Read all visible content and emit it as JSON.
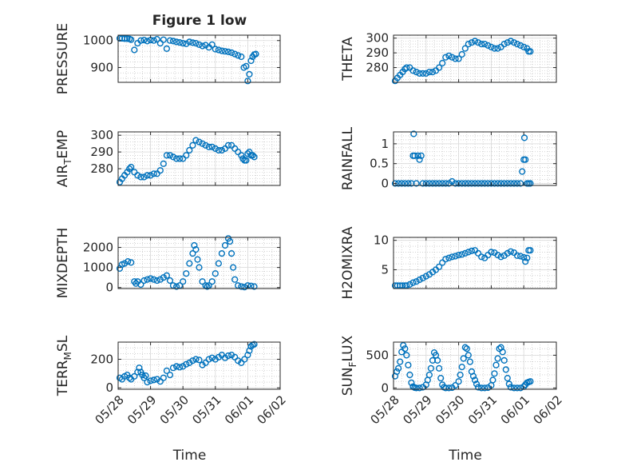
{
  "figure": {
    "title": "Figure 1 low",
    "xlabel": "Time",
    "marker_color": "#0072BD",
    "date_ticks": [
      "05/28",
      "05/29",
      "05/30",
      "05/31",
      "06/01",
      "06/02"
    ]
  },
  "chart_data": [
    {
      "type": "scatter",
      "ylabel": "PRESSURE",
      "xlim": [
        "05/28",
        "06/02"
      ],
      "ylim": [
        845,
        1020
      ],
      "yticks": [
        900,
        1000
      ],
      "grid": true,
      "x": [
        0.05,
        0.12,
        0.2,
        0.28,
        0.35,
        0.4,
        0.5,
        0.6,
        0.7,
        0.8,
        0.9,
        1.0,
        1.1,
        1.2,
        1.3,
        1.4,
        1.5,
        1.6,
        1.7,
        1.8,
        1.9,
        2.0,
        2.1,
        2.2,
        2.3,
        2.4,
        2.5,
        2.6,
        2.7,
        2.8,
        2.9,
        3.0,
        3.1,
        3.2,
        3.3,
        3.4,
        3.5,
        3.6,
        3.7,
        3.8,
        3.88,
        3.95,
        4.0,
        4.05,
        4.1,
        4.15,
        4.2,
        4.25
      ],
      "y": [
        1008,
        1008,
        1007,
        1007,
        1006,
        1003,
        965,
        990,
        1000,
        1002,
        998,
        1002,
        1000,
        1005,
        990,
        1003,
        970,
        1000,
        998,
        995,
        993,
        990,
        988,
        995,
        992,
        990,
        985,
        980,
        983,
        975,
        985,
        968,
        965,
        962,
        960,
        958,
        955,
        950,
        945,
        940,
        900,
        905,
        850,
        875,
        925,
        940,
        948,
        950
      ]
    },
    {
      "type": "scatter",
      "ylabel": "THETA",
      "xlim": [
        "05/28",
        "06/02"
      ],
      "ylim": [
        270,
        302
      ],
      "yticks": [
        280,
        290,
        300
      ],
      "grid": true,
      "x": [
        0.05,
        0.12,
        0.2,
        0.28,
        0.35,
        0.4,
        0.5,
        0.6,
        0.7,
        0.8,
        0.9,
        1.0,
        1.1,
        1.2,
        1.3,
        1.4,
        1.5,
        1.6,
        1.7,
        1.8,
        1.9,
        2.0,
        2.1,
        2.2,
        2.3,
        2.4,
        2.5,
        2.6,
        2.7,
        2.8,
        2.9,
        3.0,
        3.1,
        3.2,
        3.3,
        3.4,
        3.5,
        3.6,
        3.7,
        3.8,
        3.9,
        4.0,
        4.1,
        4.15,
        4.2
      ],
      "y": [
        271,
        273,
        275,
        277,
        279,
        280,
        280,
        278,
        277,
        276,
        276,
        276,
        277,
        277,
        278,
        280,
        283,
        287,
        288,
        287,
        286,
        286,
        289,
        293,
        296,
        297,
        298,
        297,
        296,
        296,
        295,
        294,
        293,
        293,
        294,
        296,
        297,
        298,
        297,
        296,
        295,
        294,
        293,
        291,
        291
      ]
    },
    {
      "type": "scatter",
      "ylabel": "AIR_TEMP",
      "xlim": [
        "05/28",
        "06/02"
      ],
      "ylim": [
        270,
        302
      ],
      "yticks": [
        280,
        290,
        300
      ],
      "grid": true,
      "x": [
        0.05,
        0.12,
        0.2,
        0.28,
        0.35,
        0.4,
        0.5,
        0.6,
        0.7,
        0.8,
        0.9,
        1.0,
        1.1,
        1.2,
        1.3,
        1.4,
        1.5,
        1.6,
        1.7,
        1.8,
        1.9,
        2.0,
        2.1,
        2.2,
        2.3,
        2.4,
        2.5,
        2.6,
        2.7,
        2.8,
        2.9,
        3.0,
        3.1,
        3.2,
        3.3,
        3.4,
        3.5,
        3.6,
        3.7,
        3.8,
        3.85,
        3.9,
        3.95,
        4.0,
        4.05,
        4.1,
        4.15,
        4.2
      ],
      "y": [
        272,
        274,
        276,
        278,
        280,
        281,
        278,
        276,
        275,
        275,
        276,
        276,
        277,
        277,
        279,
        283,
        288,
        288,
        287,
        286,
        286,
        286,
        288,
        291,
        294,
        297,
        296,
        295,
        294,
        293,
        293,
        292,
        291,
        291,
        292,
        294,
        294,
        292,
        290,
        288,
        286,
        285,
        285,
        289,
        290,
        288,
        288,
        287
      ]
    },
    {
      "type": "scatter",
      "ylabel": "RAINFALL",
      "xlim": [
        "05/28",
        "06/02"
      ],
      "ylim": [
        -0.05,
        1.3
      ],
      "yticks": [
        0,
        0.5,
        1
      ],
      "grid": true,
      "x": [
        0.05,
        0.15,
        0.25,
        0.35,
        0.45,
        0.55,
        0.6,
        0.62,
        0.65,
        0.7,
        0.75,
        0.8,
        0.85,
        0.9,
        1.0,
        1.1,
        1.2,
        1.3,
        1.4,
        1.5,
        1.6,
        1.7,
        1.8,
        1.9,
        2.0,
        2.1,
        2.2,
        2.3,
        2.4,
        2.5,
        2.6,
        2.7,
        2.8,
        2.9,
        3.0,
        3.1,
        3.2,
        3.3,
        3.4,
        3.5,
        3.6,
        3.7,
        3.8,
        3.9,
        3.95,
        4.0,
        4.02,
        4.05,
        4.1,
        4.15,
        4.2
      ],
      "y": [
        0,
        0,
        0,
        0,
        0,
        0,
        0.7,
        1.25,
        0.7,
        0,
        0.7,
        0.6,
        0.7,
        0,
        0,
        0,
        0,
        0,
        0,
        0,
        0,
        0,
        0.05,
        0,
        0,
        0,
        0,
        0,
        0,
        0,
        0,
        0,
        0,
        0,
        0,
        0,
        0,
        0,
        0,
        0,
        0,
        0,
        0,
        0,
        0.3,
        0.6,
        1.15,
        0.6,
        0,
        0,
        0
      ]
    },
    {
      "type": "scatter",
      "ylabel": "MIXDEPTH",
      "xlim": [
        "05/28",
        "06/02"
      ],
      "ylim": [
        -50,
        2500
      ],
      "yticks": [
        0,
        1000,
        2000
      ],
      "grid": true,
      "x": [
        0.05,
        0.12,
        0.2,
        0.3,
        0.4,
        0.5,
        0.55,
        0.6,
        0.7,
        0.8,
        0.9,
        1.0,
        1.1,
        1.2,
        1.3,
        1.4,
        1.5,
        1.6,
        1.7,
        1.8,
        1.9,
        2.0,
        2.1,
        2.2,
        2.3,
        2.35,
        2.4,
        2.45,
        2.5,
        2.6,
        2.7,
        2.75,
        2.8,
        2.9,
        3.0,
        3.1,
        3.2,
        3.3,
        3.4,
        3.45,
        3.5,
        3.55,
        3.6,
        3.7,
        3.8,
        3.9,
        4.0,
        4.1,
        4.2
      ],
      "y": [
        950,
        1150,
        1200,
        1300,
        1250,
        300,
        200,
        300,
        150,
        350,
        400,
        450,
        400,
        350,
        400,
        500,
        600,
        350,
        100,
        50,
        100,
        300,
        700,
        1200,
        1700,
        2100,
        1900,
        1400,
        1000,
        300,
        100,
        50,
        100,
        300,
        700,
        1200,
        1700,
        2100,
        2450,
        2300,
        1700,
        1000,
        400,
        100,
        50,
        20,
        100,
        80,
        50
      ]
    },
    {
      "type": "scatter",
      "ylabel": "H2OMIXRA",
      "xlim": [
        "05/28",
        "06/02"
      ],
      "ylim": [
        1.8,
        10.5
      ],
      "yticks": [
        5,
        10
      ],
      "grid": true,
      "x": [
        0.05,
        0.12,
        0.2,
        0.28,
        0.35,
        0.4,
        0.5,
        0.6,
        0.7,
        0.8,
        0.9,
        1.0,
        1.1,
        1.2,
        1.3,
        1.4,
        1.5,
        1.6,
        1.7,
        1.8,
        1.9,
        2.0,
        2.1,
        2.2,
        2.3,
        2.4,
        2.5,
        2.6,
        2.7,
        2.8,
        2.9,
        3.0,
        3.1,
        3.2,
        3.3,
        3.4,
        3.5,
        3.6,
        3.7,
        3.8,
        3.9,
        4.0,
        4.05,
        4.1,
        4.15,
        4.2
      ],
      "y": [
        2.3,
        2.3,
        2.3,
        2.3,
        2.3,
        2.3,
        2.5,
        2.8,
        3.0,
        3.3,
        3.6,
        3.9,
        4.2,
        4.6,
        5.0,
        5.5,
        6.2,
        6.8,
        7.0,
        7.2,
        7.3,
        7.5,
        7.6,
        7.8,
        8.0,
        8.2,
        8.3,
        7.8,
        7.2,
        7.0,
        7.5,
        8.0,
        7.9,
        7.5,
        7.2,
        7.4,
        7.8,
        8.1,
        7.9,
        7.4,
        7.3,
        7.1,
        6.4,
        7.0,
        8.3,
        8.3
      ]
    },
    {
      "type": "scatter",
      "ylabel": "TERR_MSL",
      "xlim": [
        "05/28",
        "06/02"
      ],
      "ylim": [
        -10,
        320
      ],
      "yticks": [
        0,
        200
      ],
      "grid": true,
      "x": [
        0.05,
        0.12,
        0.2,
        0.28,
        0.35,
        0.4,
        0.5,
        0.6,
        0.65,
        0.7,
        0.75,
        0.8,
        0.85,
        0.9,
        1.0,
        1.1,
        1.2,
        1.3,
        1.4,
        1.5,
        1.6,
        1.7,
        1.8,
        1.9,
        2.0,
        2.1,
        2.2,
        2.3,
        2.4,
        2.5,
        2.6,
        2.7,
        2.8,
        2.9,
        3.0,
        3.1,
        3.2,
        3.3,
        3.4,
        3.5,
        3.6,
        3.7,
        3.8,
        3.9,
        4.0,
        4.05,
        4.1,
        4.15,
        4.2
      ],
      "y": [
        70,
        60,
        80,
        90,
        70,
        60,
        80,
        110,
        140,
        110,
        90,
        70,
        85,
        40,
        50,
        55,
        60,
        45,
        70,
        120,
        90,
        140,
        150,
        145,
        150,
        165,
        175,
        190,
        200,
        195,
        160,
        175,
        200,
        210,
        200,
        215,
        230,
        210,
        225,
        230,
        215,
        190,
        175,
        200,
        230,
        260,
        290,
        300,
        305
      ]
    },
    {
      "type": "scatter",
      "ylabel": "SUN_FLUX",
      "xlim": [
        "05/28",
        "06/02"
      ],
      "ylim": [
        -20,
        700
      ],
      "yticks": [
        0,
        500
      ],
      "grid": true,
      "x": [
        0.05,
        0.1,
        0.15,
        0.2,
        0.25,
        0.3,
        0.35,
        0.4,
        0.45,
        0.5,
        0.55,
        0.6,
        0.65,
        0.7,
        0.8,
        0.9,
        1.0,
        1.05,
        1.1,
        1.15,
        1.2,
        1.25,
        1.3,
        1.35,
        1.4,
        1.45,
        1.5,
        1.55,
        1.6,
        1.7,
        1.8,
        1.9,
        2.0,
        2.05,
        2.1,
        2.15,
        2.2,
        2.25,
        2.3,
        2.35,
        2.4,
        2.45,
        2.5,
        2.55,
        2.6,
        2.7,
        2.8,
        2.9,
        3.0,
        3.05,
        3.1,
        3.15,
        3.2,
        3.25,
        3.3,
        3.35,
        3.4,
        3.45,
        3.5,
        3.55,
        3.6,
        3.7,
        3.8,
        3.9,
        4.0,
        4.05,
        4.1,
        4.15,
        4.2
      ],
      "y": [
        180,
        250,
        300,
        400,
        550,
        650,
        600,
        500,
        350,
        200,
        80,
        20,
        5,
        0,
        0,
        10,
        50,
        120,
        200,
        300,
        420,
        540,
        500,
        420,
        300,
        150,
        50,
        10,
        0,
        0,
        5,
        40,
        100,
        200,
        320,
        450,
        620,
        600,
        500,
        400,
        250,
        180,
        120,
        60,
        10,
        0,
        0,
        5,
        40,
        120,
        220,
        350,
        450,
        600,
        620,
        550,
        420,
        280,
        150,
        60,
        10,
        0,
        0,
        0,
        20,
        50,
        80,
        90,
        100
      ]
    }
  ]
}
